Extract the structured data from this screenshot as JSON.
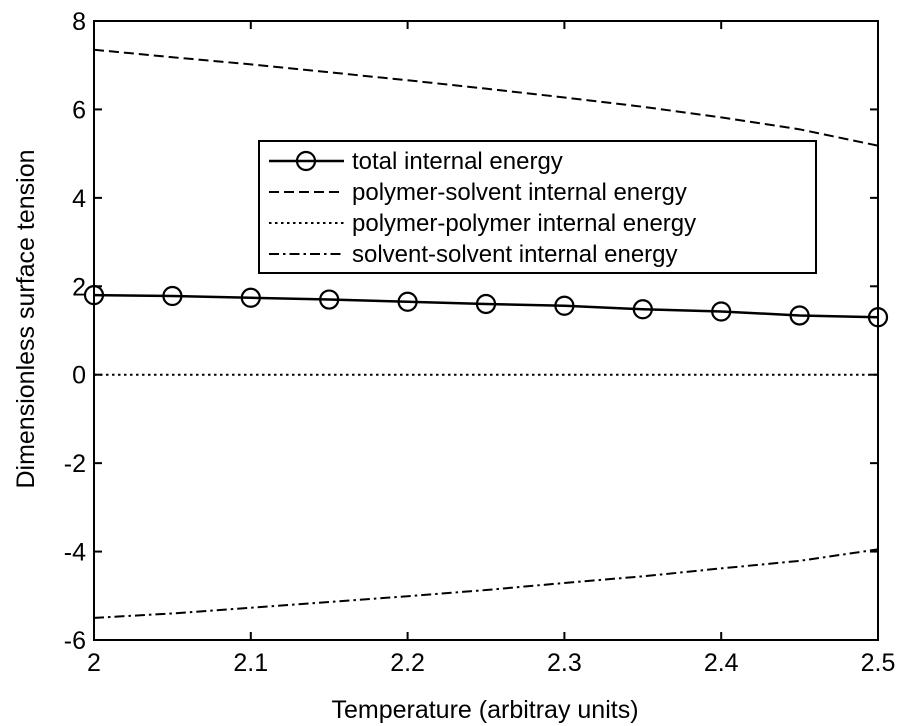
{
  "chart_data": {
    "type": "line",
    "xlabel": "Temperature (arbitray units)",
    "ylabel": "Dimensionless surface tension",
    "xlim": [
      2,
      2.5
    ],
    "ylim": [
      -6,
      8
    ],
    "xticks": [
      2,
      2.1,
      2.2,
      2.3,
      2.4,
      2.5
    ],
    "xtick_labels": [
      "2",
      "2.1",
      "2.2",
      "2.3",
      "2.4",
      "2.5"
    ],
    "yticks": [
      -6,
      -4,
      -2,
      0,
      2,
      4,
      6,
      8
    ],
    "ytick_labels": [
      "-6",
      "-4",
      "-2",
      "0",
      "2",
      "4",
      "6",
      "8"
    ],
    "grid": false,
    "legend_position": "center-right",
    "x": [
      2.0,
      2.05,
      2.1,
      2.15,
      2.2,
      2.25,
      2.3,
      2.35,
      2.4,
      2.45,
      2.5
    ],
    "series": [
      {
        "name": "total internal energy",
        "style": "solid-circle",
        "values": [
          1.8,
          1.78,
          1.74,
          1.7,
          1.65,
          1.6,
          1.56,
          1.48,
          1.43,
          1.34,
          1.3
        ]
      },
      {
        "name": "polymer-solvent internal energy",
        "style": "dashed",
        "values": [
          7.35,
          7.18,
          7.02,
          6.84,
          6.66,
          6.47,
          6.27,
          6.06,
          5.82,
          5.55,
          5.18
        ]
      },
      {
        "name": "polymer-polymer internal energy",
        "style": "dotted",
        "values": [
          0,
          0,
          0,
          0,
          0,
          0,
          0,
          0,
          0,
          0,
          0
        ]
      },
      {
        "name": "solvent-solvent internal energy",
        "style": "dashdot",
        "values": [
          -5.5,
          -5.4,
          -5.27,
          -5.14,
          -5.01,
          -4.87,
          -4.71,
          -4.56,
          -4.38,
          -4.21,
          -3.95
        ]
      }
    ]
  }
}
